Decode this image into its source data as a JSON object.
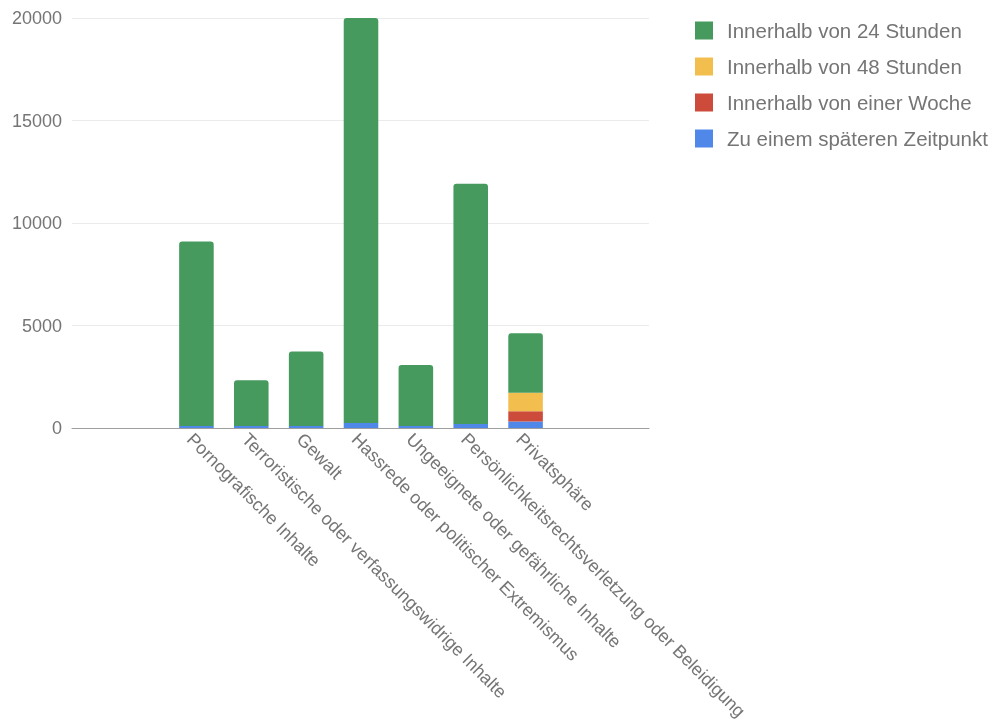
{
  "chart_data": {
    "type": "bar",
    "stacked": true,
    "categories": [
      "Pornografische Inhalte",
      "Terroristische oder verfassungswidrige Inhalte",
      "Gewalt",
      "Hassrede oder politischer Extremismus",
      "Ungeeignete oder gefährliche Inhalte",
      "Persönlichkeitsrechtsverletzung oder Beleidigung",
      "Privatsphäre"
    ],
    "series": [
      {
        "name": "Zu einem späteren Zeitpunkt",
        "color": "#5088ea",
        "values": [
          100,
          100,
          100,
          250,
          100,
          200,
          320
        ]
      },
      {
        "name": "Innerhalb von einer Woche",
        "color": "#cc4b3b",
        "values": [
          0,
          0,
          0,
          0,
          0,
          0,
          500
        ]
      },
      {
        "name": "Innerhalb von 48 Stunden",
        "color": "#f2bf4f",
        "values": [
          0,
          0,
          0,
          0,
          0,
          0,
          900
        ]
      },
      {
        "name": "Innerhalb von 24 Stunden",
        "color": "#469a5e",
        "values": [
          9000,
          2230,
          3630,
          19750,
          2970,
          11720,
          2900
        ]
      }
    ],
    "ylim": [
      0,
      20000
    ],
    "yticks": [
      0,
      5000,
      10000,
      15000,
      20000
    ],
    "grid": "y",
    "legend": "top right"
  }
}
